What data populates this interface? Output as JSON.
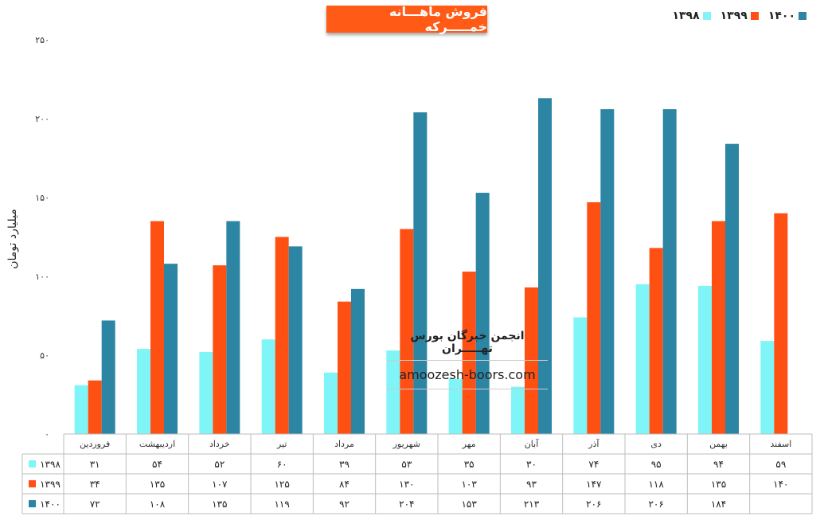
{
  "chart_data": {
    "type": "bar",
    "title": "فروش ماهـــانه خمـــــرکه",
    "ylabel": "میلیارد تومان",
    "ylim": [
      0,
      250
    ],
    "yticks": [
      "۰",
      "۵۰",
      "۱۰۰",
      "۱۵۰",
      "۲۰۰",
      "۲۵۰"
    ],
    "categories": [
      "فروردین",
      "اردیبهشت",
      "خرداد",
      "تیر",
      "مرداد",
      "شهریور",
      "مهر",
      "آبان",
      "آذر",
      "دی",
      "بهمن",
      "اسفند"
    ],
    "series": [
      {
        "name": "۱۳۹۸",
        "color": "#7ff5f7",
        "values": [
          31,
          54,
          52,
          60,
          39,
          53,
          35,
          30,
          74,
          95,
          94,
          59
        ],
        "labels": [
          "۳۱",
          "۵۴",
          "۵۲",
          "۶۰",
          "۳۹",
          "۵۳",
          "۳۵",
          "۳۰",
          "۷۴",
          "۹۵",
          "۹۴",
          "۵۹"
        ]
      },
      {
        "name": "۱۳۹۹",
        "color": "#ff5013",
        "values": [
          34,
          135,
          107,
          125,
          84,
          130,
          103,
          93,
          147,
          118,
          135,
          140
        ],
        "labels": [
          "۳۴",
          "۱۳۵",
          "۱۰۷",
          "۱۲۵",
          "۸۴",
          "۱۳۰",
          "۱۰۳",
          "۹۳",
          "۱۴۷",
          "۱۱۸",
          "۱۳۵",
          "۱۴۰"
        ]
      },
      {
        "name": "۱۴۰۰",
        "color": "#2b85a3",
        "values": [
          72,
          108,
          135,
          119,
          92,
          204,
          153,
          213,
          206,
          206,
          184,
          null
        ],
        "labels": [
          "۷۲",
          "۱۰۸",
          "۱۳۵",
          "۱۱۹",
          "۹۲",
          "۲۰۴",
          "۱۵۳",
          "۲۱۳",
          "۲۰۶",
          "۲۰۶",
          "۱۸۴",
          ""
        ]
      }
    ],
    "legend": "top-right",
    "data_table": true
  },
  "watermark": {
    "name": "انجمن خبرگان بورس تهـــــران",
    "url": "amoozesh-boors.com"
  }
}
